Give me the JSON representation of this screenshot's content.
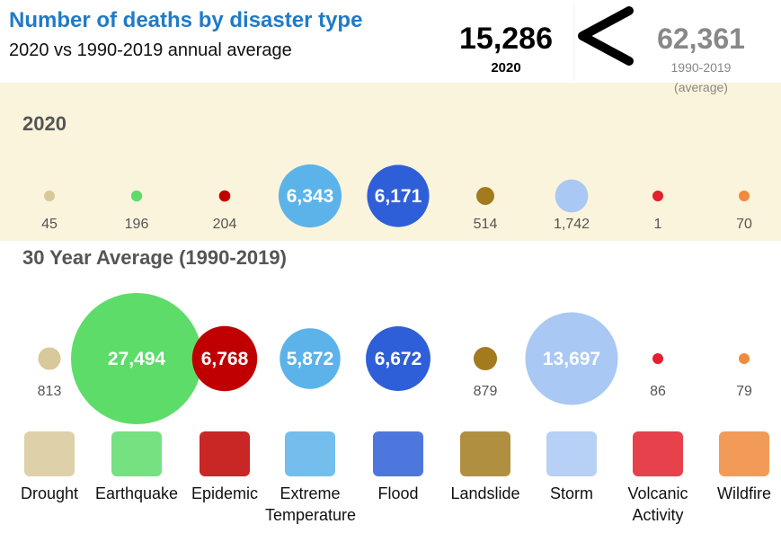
{
  "chart_data": {
    "type": "bubble",
    "title": "Number of deaths by disaster type",
    "subtitle": "2020 vs 1990-2019 annual average",
    "summary": [
      {
        "value": 15286,
        "label": "15,286",
        "caption": [
          "2020"
        ]
      },
      {
        "value": 62361,
        "label": "62,361",
        "caption": [
          "1990-2019",
          "(average)"
        ]
      }
    ],
    "categories": [
      "Drought",
      "Earthquake",
      "Epidemic",
      "Extreme Temperature",
      "Flood",
      "Landslide",
      "Storm",
      "Volcanic Activity",
      "Wildfire"
    ],
    "colors": [
      "#d8c99b",
      "#5edc6a",
      "#c00000",
      "#5cb3ea",
      "#2f5fd8",
      "#a37b1e",
      "#a9c8f4",
      "#e3202b",
      "#f08a3c"
    ],
    "series": [
      {
        "name": "2020",
        "values": [
          45,
          196,
          204,
          6343,
          6171,
          514,
          1742,
          1,
          70
        ],
        "value_labels": [
          "45",
          "196",
          "204",
          "6,343",
          "6,171",
          "514",
          "1,742",
          "1",
          "70"
        ]
      },
      {
        "name": "30 Year Average (1990-2019)",
        "values": [
          813,
          27494,
          6768,
          5872,
          6672,
          879,
          13697,
          86,
          79
        ],
        "value_labels": [
          "813",
          "27,494",
          "6,768",
          "5,872",
          "6,672",
          "879",
          "13,697",
          "86",
          "79"
        ]
      }
    ]
  }
}
